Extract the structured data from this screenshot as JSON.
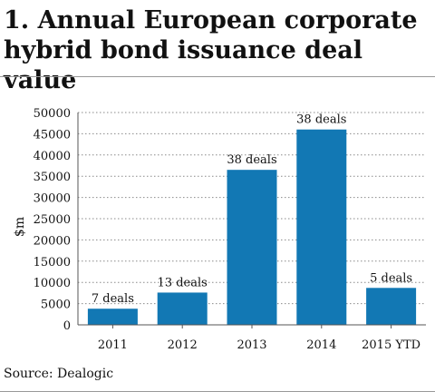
{
  "chart_data": {
    "type": "bar",
    "title": "1. Annual European corporate hybrid bond issuance deal value",
    "xlabel": "",
    "ylabel": "$m",
    "ylim": [
      0,
      50000
    ],
    "yticks": [
      0,
      5000,
      10000,
      15000,
      20000,
      25000,
      30000,
      35000,
      40000,
      45000,
      50000
    ],
    "categories": [
      "2011",
      "2012",
      "2013",
      "2014",
      "2015 YTD"
    ],
    "values": [
      3800,
      7600,
      36500,
      46000,
      8700
    ],
    "data_labels": [
      "7 deals",
      "13 deals",
      "38 deals",
      "38 deals",
      "5 deals"
    ],
    "grid": "horizontal dotted",
    "bar_color": "#1278b4"
  },
  "source": "Source: Dealogic"
}
